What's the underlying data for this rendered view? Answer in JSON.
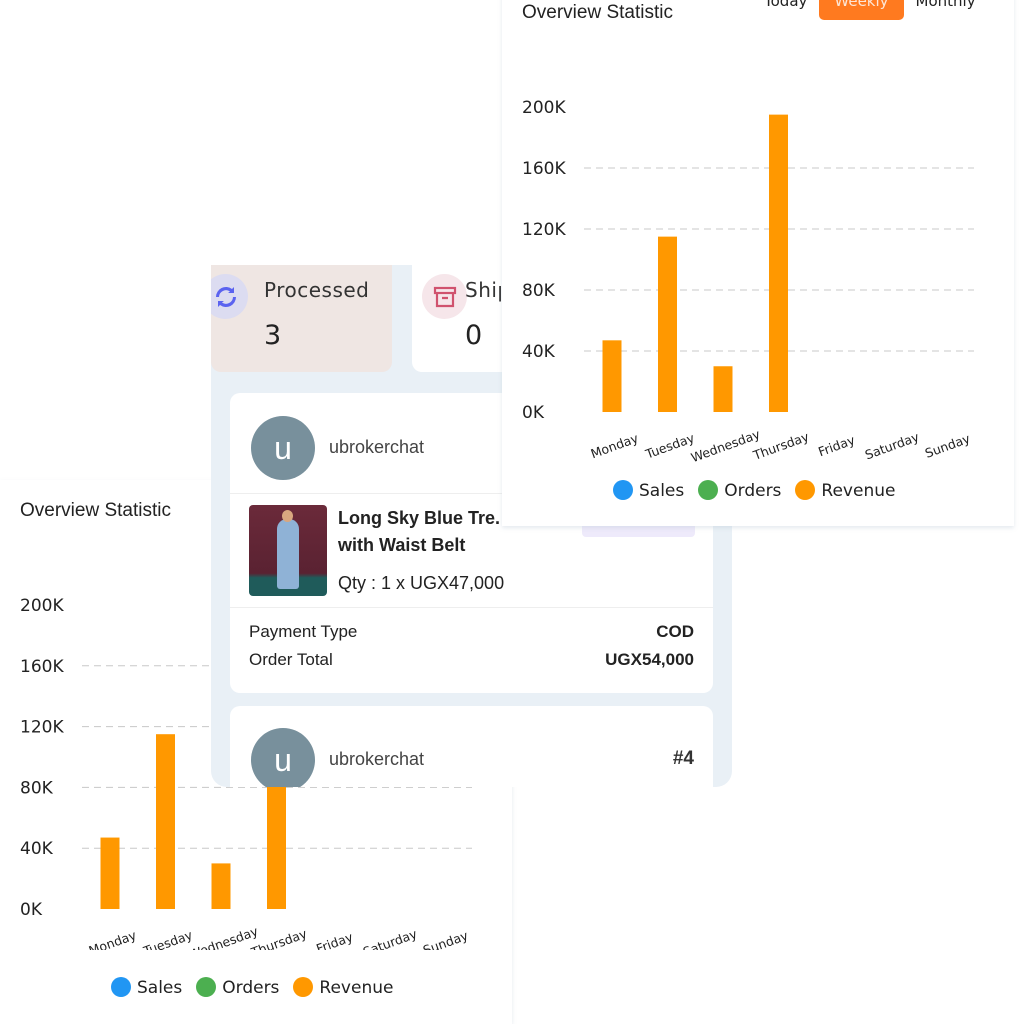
{
  "chart_data": [
    {
      "id": "top",
      "type": "bar",
      "title": "Overview Statistic",
      "categories": [
        "Monday",
        "Tuesday",
        "Wednesday",
        "Thursday",
        "Friday",
        "Saturday",
        "Sunday"
      ],
      "series": [
        {
          "name": "Sales",
          "color": "#2196f3",
          "values": [
            0,
            0,
            0,
            0,
            0,
            0,
            0
          ]
        },
        {
          "name": "Orders",
          "color": "#4caf50",
          "values": [
            0,
            0,
            0,
            0,
            0,
            0,
            0
          ]
        },
        {
          "name": "Revenue",
          "color": "#ff9800",
          "values": [
            47000,
            115000,
            30000,
            195000,
            0,
            0,
            0
          ]
        }
      ],
      "yticks": [
        "0K",
        "40K",
        "80K",
        "120K",
        "160K",
        "200K"
      ],
      "ylim": [
        0,
        200000
      ],
      "grid": true,
      "legend": "bottom",
      "tabs": [
        "Today",
        "Weekly",
        "Monthly"
      ],
      "active_tab": "Weekly"
    },
    {
      "id": "bottom",
      "type": "bar",
      "title": "Overview Statistic",
      "categories": [
        "Monday",
        "Tuesday",
        "Wednesday",
        "Thursday",
        "Friday",
        "Saturday",
        "Sunday"
      ],
      "series": [
        {
          "name": "Sales",
          "color": "#2196f3",
          "values": [
            0,
            0,
            0,
            0,
            0,
            0,
            0
          ]
        },
        {
          "name": "Orders",
          "color": "#4caf50",
          "values": [
            0,
            0,
            0,
            0,
            0,
            0,
            0
          ]
        },
        {
          "name": "Revenue",
          "color": "#ff9800",
          "values": [
            47000,
            115000,
            30000,
            195000,
            0,
            0,
            0
          ]
        }
      ],
      "yticks": [
        "0K",
        "40K",
        "80K",
        "120K",
        "160K",
        "200K"
      ],
      "ylim": [
        0,
        200000
      ],
      "grid": true,
      "legend": "bottom"
    }
  ],
  "tiles": [
    {
      "label": "Processed",
      "count": "3",
      "icon": "refresh-icon"
    },
    {
      "label": "Shipped",
      "count": "0",
      "icon": "archive-box-icon"
    }
  ],
  "orders": [
    {
      "avatar_letter": "u",
      "username": "ubrokerchat",
      "product": "Long Sky Blue Trench Coat with Waist Belt",
      "product_line1": "Long Sky Blue Tre.",
      "product_line2": "with Waist Belt",
      "qty": "Qty : 1 x UGX47,000",
      "payment_label": "Payment Type",
      "payment_value": "COD",
      "total_label": "Order Total",
      "total_value": "UGX54,000"
    },
    {
      "avatar_letter": "u",
      "username": "ubrokerchat",
      "order_no": "#4"
    }
  ]
}
